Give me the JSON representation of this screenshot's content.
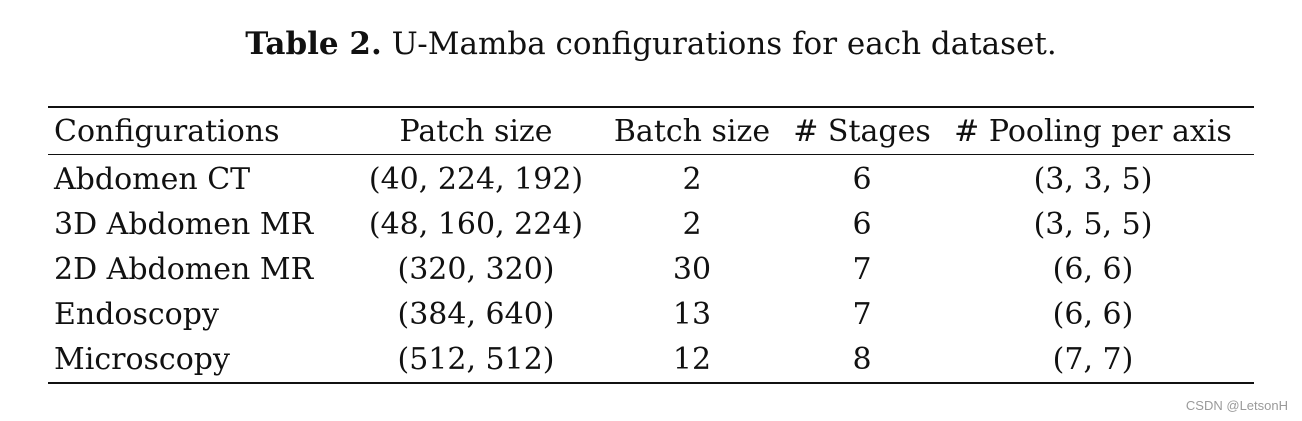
{
  "caption": {
    "label": "Table 2.",
    "text": "U-Mamba configurations for each dataset."
  },
  "table": {
    "headers": [
      "Configurations",
      "Patch size",
      "Batch size",
      "# Stages",
      "# Pooling per axis"
    ],
    "rows": [
      [
        "Abdomen CT",
        "(40, 224, 192)",
        "2",
        "6",
        "(3, 3, 5)"
      ],
      [
        "3D Abdomen MR",
        "(48, 160, 224)",
        "2",
        "6",
        "(3, 5, 5)"
      ],
      [
        "2D Abdomen MR",
        "(320, 320)",
        "30",
        "7",
        "(6, 6)"
      ],
      [
        "Endoscopy",
        "(384, 640)",
        "13",
        "7",
        "(6, 6)"
      ],
      [
        "Microscopy",
        "(512, 512)",
        "12",
        "8",
        "(7, 7)"
      ]
    ]
  },
  "watermark": "CSDN @LetsonH"
}
